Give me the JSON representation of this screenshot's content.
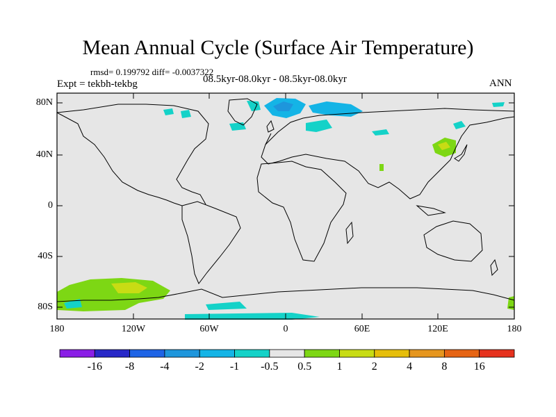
{
  "title": "Mean Annual Cycle (Surface Air Temperature)",
  "stats": "rmsd= 0.199792 diff= -0.0037322",
  "expt": "Expt = tekbh-tekbg",
  "period": "08.5kyr-08.0kyr - 08.5kyr-08.0kyr",
  "season": "ANN",
  "lat_labels": [
    "80N",
    "40N",
    "0",
    "40S",
    "80S"
  ],
  "lon_labels": [
    "180",
    "120W",
    "60W",
    "0",
    "60E",
    "120E",
    "180"
  ],
  "colorbar": {
    "labels": [
      "-16",
      "-8",
      "-4",
      "-2",
      "-1",
      "-0.5",
      "0.5",
      "1",
      "2",
      "4",
      "8",
      "16"
    ],
    "colors": [
      "#8a1ee6",
      "#2828c8",
      "#1e64e6",
      "#1e96dc",
      "#14b4e6",
      "#14d2c8",
      "#e6e6e6",
      "#7dd714",
      "#c8dc14",
      "#e6be0a",
      "#e6961e",
      "#e66414",
      "#e6321e"
    ]
  },
  "map_background": "#e6e6e6"
}
